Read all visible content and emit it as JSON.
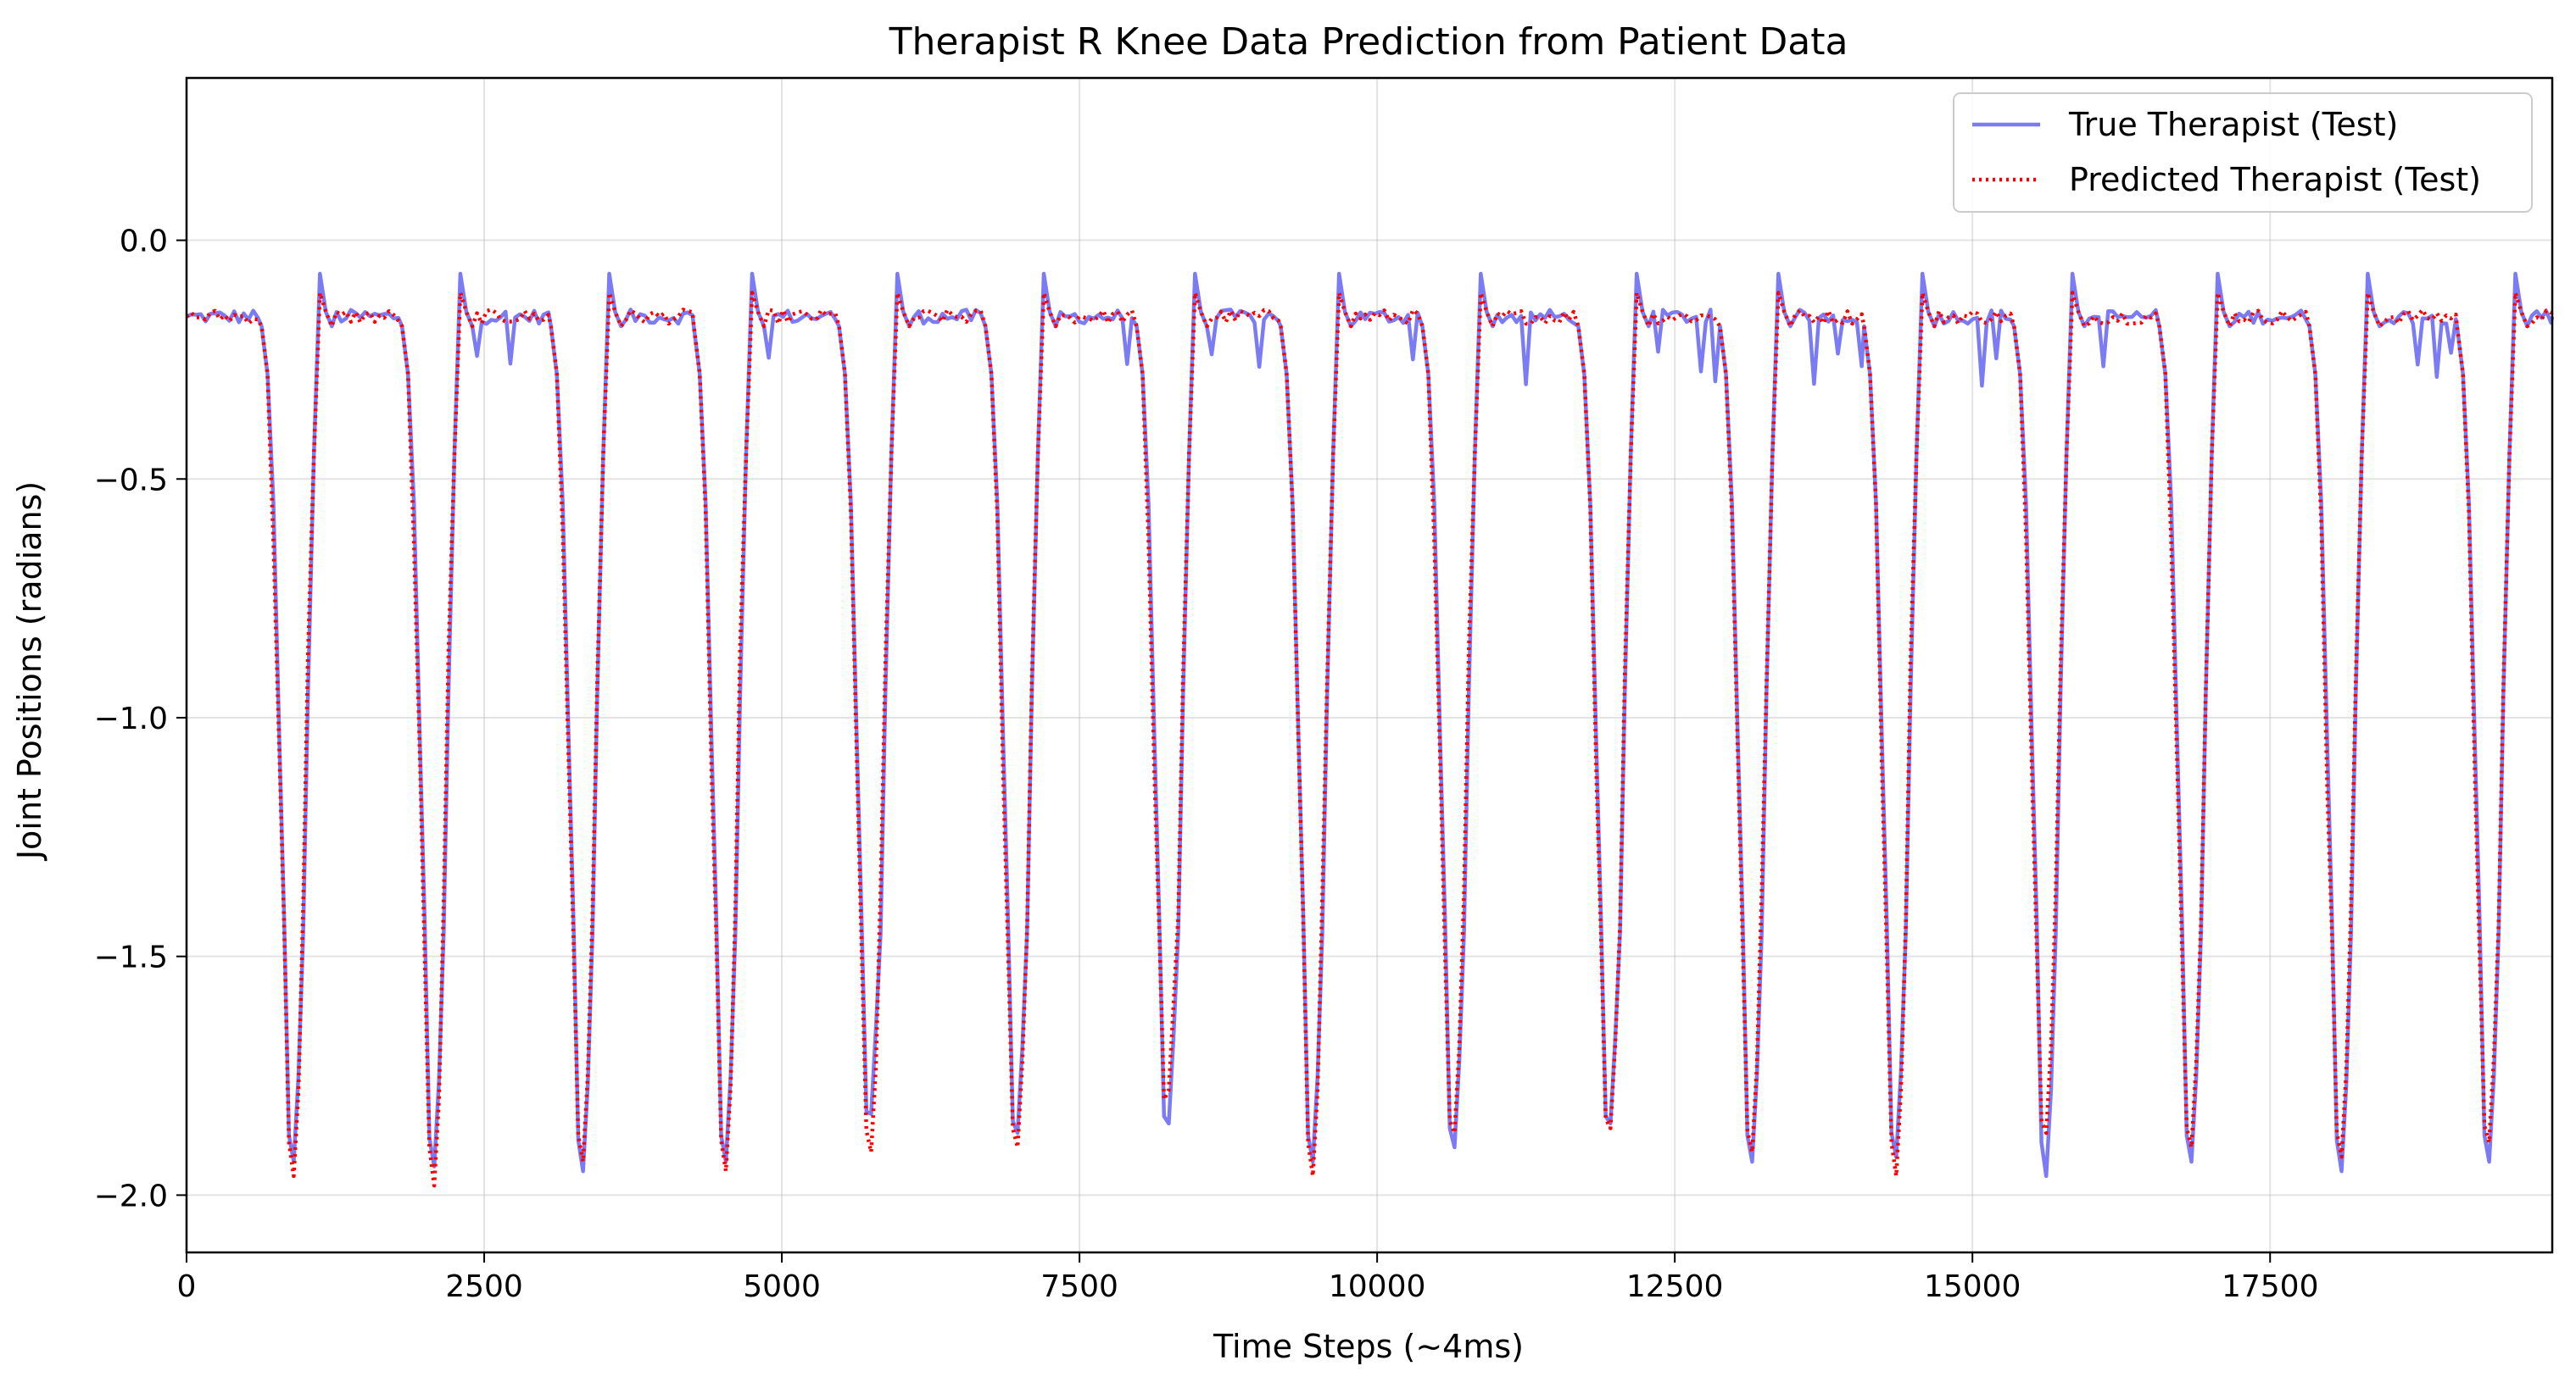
{
  "chart_data": {
    "type": "line",
    "title": "Therapist R Knee Data Prediction from Patient Data",
    "xlabel": "Time Steps (~4ms)",
    "ylabel": "Joint Positions (radians)",
    "xlim": [
      0,
      19870
    ],
    "ylim": [
      -2.12,
      0.34
    ],
    "xticks": [
      0,
      2500,
      5000,
      7500,
      10000,
      12500,
      15000,
      17500
    ],
    "xtick_labels": [
      "0",
      "2500",
      "5000",
      "7500",
      "10000",
      "12500",
      "15000",
      "17500"
    ],
    "yticks": [
      0.0,
      -0.5,
      -1.0,
      -1.5,
      -2.0
    ],
    "ytick_labels": [
      "0.0",
      "−0.5",
      "−1.0",
      "−1.5",
      "−2.0"
    ],
    "grid": true,
    "legend_position": "top-right",
    "cycle_minima": [
      {
        "x": 900,
        "true": -1.93,
        "pred": -1.96
      },
      {
        "x": 2080,
        "true": -1.94,
        "pred": -1.98
      },
      {
        "x": 3330,
        "true": -1.95,
        "pred": -1.93
      },
      {
        "x": 4530,
        "true": -1.93,
        "pred": -1.95
      },
      {
        "x": 5750,
        "true": -1.83,
        "pred": -1.91
      },
      {
        "x": 6980,
        "true": -1.87,
        "pred": -1.9
      },
      {
        "x": 8250,
        "true": -1.85,
        "pred": -1.78
      },
      {
        "x": 9460,
        "true": -1.93,
        "pred": -1.96
      },
      {
        "x": 10650,
        "true": -1.9,
        "pred": -1.87
      },
      {
        "x": 11960,
        "true": -1.85,
        "pred": -1.86
      },
      {
        "x": 13150,
        "true": -1.93,
        "pred": -1.91
      },
      {
        "x": 14360,
        "true": -1.92,
        "pred": -1.96
      },
      {
        "x": 15620,
        "true": -1.96,
        "pred": -1.87
      },
      {
        "x": 16840,
        "true": -1.93,
        "pred": -1.9
      },
      {
        "x": 18100,
        "true": -1.95,
        "pred": -1.92
      },
      {
        "x": 19340,
        "true": -1.93,
        "pred": -1.89
      }
    ],
    "series": [
      {
        "name": "True Therapist (Test)",
        "color": "#7b7bf5",
        "style": "solid",
        "baseline": -0.16,
        "peak": -0.07
      },
      {
        "name": "Predicted Therapist (Test)",
        "color": "#ff0000",
        "style": "dotted",
        "baseline": -0.16,
        "peak": -0.11
      }
    ]
  }
}
